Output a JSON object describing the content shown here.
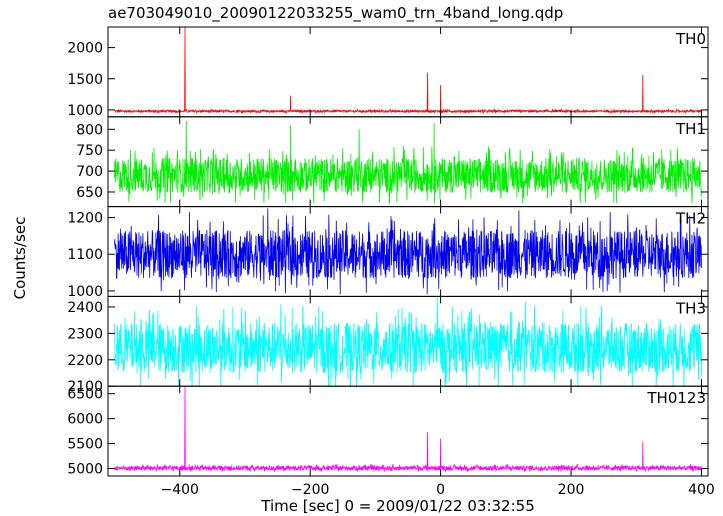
{
  "chart_data": {
    "type": "line",
    "title": "ae703049010_20090122033255_wam0_trn_4band_long.qdp",
    "ylabel": "Counts/sec",
    "xlabel": "Time [sec] 0 = 2009/01/22 03:32:55",
    "xlim": [
      -510,
      410
    ],
    "x_ticks": [
      -400,
      -200,
      0,
      200,
      400
    ],
    "x_tick_labels": [
      "−400",
      "−200",
      "0",
      "200",
      "400"
    ],
    "panels": [
      {
        "name": "TH0",
        "color": "#ff0000",
        "ylim": [
          890,
          2330
        ],
        "y_ticks": [
          1000,
          1500,
          2000
        ],
        "baseline": 980,
        "noise": 28,
        "spikes": [
          [
            -392,
            2330
          ],
          [
            -230,
            1230
          ],
          [
            -20,
            1600
          ],
          [
            0,
            1400
          ],
          [
            310,
            1560
          ]
        ]
      },
      {
        "name": "TH1",
        "color": "#00ee00",
        "ylim": [
          615,
          830
        ],
        "y_ticks": [
          650,
          700,
          750,
          800
        ],
        "baseline": 690,
        "noise": 70,
        "spikes": [
          [
            -390,
            820
          ],
          [
            -230,
            810
          ],
          [
            -125,
            800
          ],
          [
            -10,
            815
          ]
        ]
      },
      {
        "name": "TH2",
        "color": "#0000ee",
        "ylim": [
          985,
          1230
        ],
        "y_ticks": [
          1000,
          1100,
          1200
        ],
        "baseline": 1100,
        "noise": 110,
        "spikes": [
          [
            -385,
            1215
          ],
          [
            -265,
            1225
          ],
          [
            120,
            1220
          ],
          [
            260,
            1215
          ]
        ]
      },
      {
        "name": "TH3",
        "color": "#00ffff",
        "ylim": [
          2100,
          2440
        ],
        "y_ticks": [
          2100,
          2200,
          2300,
          2400
        ],
        "baseline": 2245,
        "noise": 160,
        "spikes": [
          [
            -245,
            2410
          ],
          [
            -5,
            2440
          ],
          [
            130,
            2420
          ],
          [
            215,
            2405
          ]
        ]
      },
      {
        "name": "TH0123",
        "color": "#ff00ff",
        "ylim": [
          4850,
          6650
        ],
        "y_ticks": [
          5000,
          5500,
          6000,
          6500
        ],
        "baseline": 5010,
        "noise": 75,
        "spikes": [
          [
            -392,
            6650
          ],
          [
            -20,
            5730
          ],
          [
            0,
            5600
          ],
          [
            310,
            5530
          ]
        ]
      }
    ]
  }
}
